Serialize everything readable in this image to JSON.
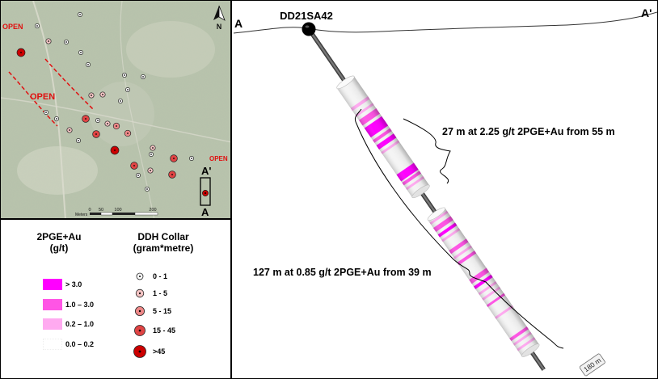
{
  "map": {
    "open_labels": [
      "OPEN",
      "OPEN",
      "OPEN"
    ],
    "north_label": "N",
    "section_labels": [
      "A'",
      "A"
    ],
    "scale": {
      "unit_label": "Meters",
      "ticks": [
        "0",
        "50",
        "100",
        "200"
      ]
    }
  },
  "legend": {
    "grade": {
      "title_line1": "2PGE+Au",
      "title_line2": "(g/t)",
      "items": [
        {
          "label": "> 3.0",
          "color": "#ff00ff"
        },
        {
          "label": "1.0 – 3.0",
          "color": "#ff55e5"
        },
        {
          "label": "0.2 – 1.0",
          "color": "#ffaaf0"
        },
        {
          "label": "0.0 – 0.2",
          "color": "#ffffff"
        }
      ]
    },
    "collar": {
      "title_line1": "DDH Collar",
      "title_line2": "(gram*metre)",
      "items": [
        {
          "label": "0 - 1",
          "color": "#ffffff"
        },
        {
          "label": "1 - 5",
          "color": "#f4c4c4"
        },
        {
          "label": "5 - 15",
          "color": "#ee8888"
        },
        {
          "label": "15 - 45",
          "color": "#e04444"
        },
        {
          "label": ">45",
          "color": "#cc0000"
        }
      ]
    }
  },
  "section": {
    "hole_id": "DD21SA42",
    "end_label": "A",
    "end_label_prime": "A'",
    "intercept_1": "27 m at 2.25 g/t 2PGE+Au from 55 m",
    "intercept_2": "127 m at 0.85 g/t 2PGE+Au from 39 m",
    "depth_label": "180 m"
  }
}
